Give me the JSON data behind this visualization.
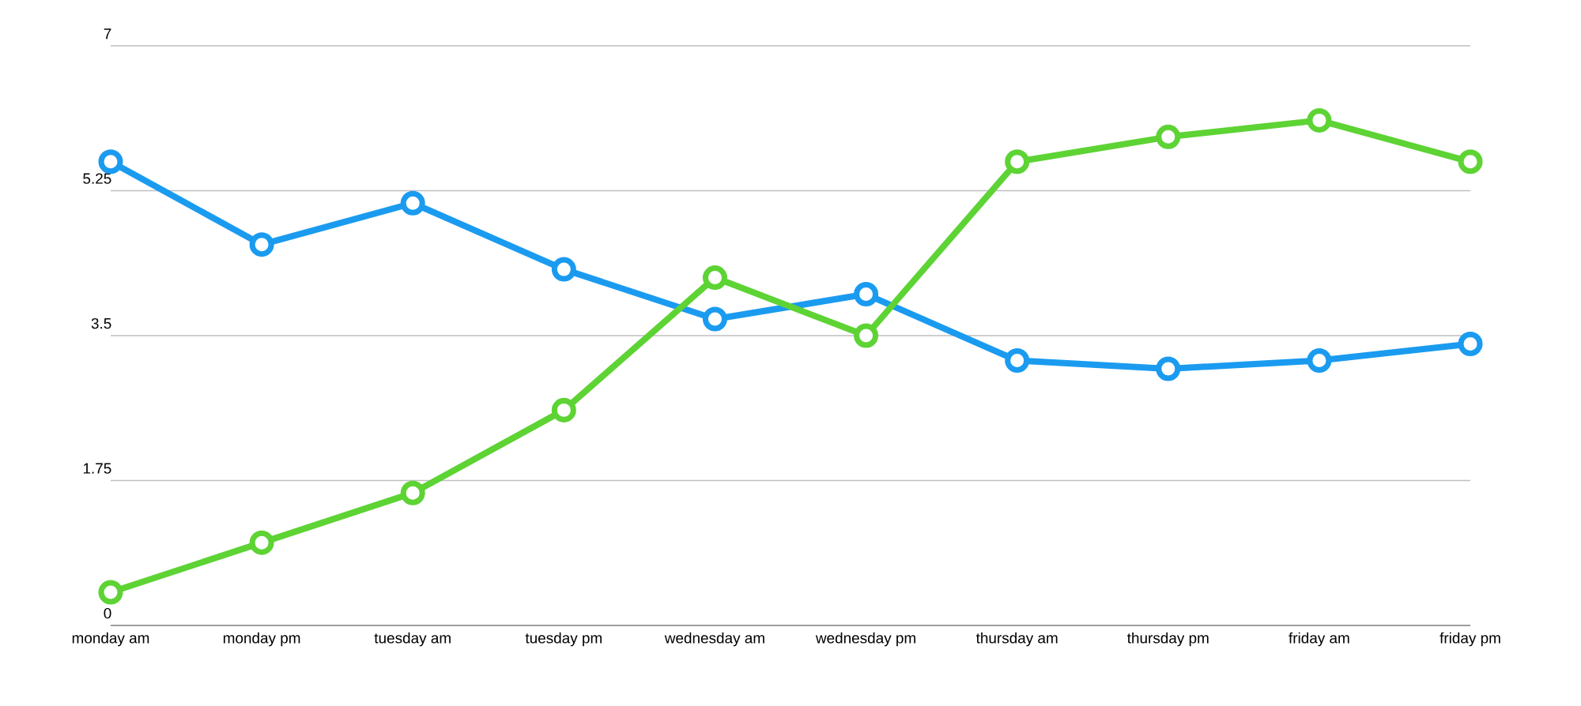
{
  "chart_data": {
    "type": "line",
    "categories": [
      "monday am",
      "monday pm",
      "tuesday am",
      "tuesday pm",
      "wednesday am",
      "wednesday pm",
      "thursday am",
      "thursday pm",
      "friday am",
      "friday pm"
    ],
    "series": [
      {
        "color": "#1a9bf0",
        "values": [
          5.6,
          4.6,
          5.1,
          4.3,
          3.7,
          4.0,
          3.2,
          3.1,
          3.2,
          3.4
        ]
      },
      {
        "color": "#5dd334",
        "values": [
          0.4,
          1.0,
          1.6,
          2.6,
          4.2,
          3.5,
          5.6,
          5.9,
          6.1,
          5.6
        ]
      }
    ],
    "ylim": [
      0,
      7
    ],
    "yticks": [
      0,
      1.75,
      3.5,
      5.25,
      7
    ],
    "grid": "y",
    "marker": "circle",
    "line_style": "solid"
  }
}
